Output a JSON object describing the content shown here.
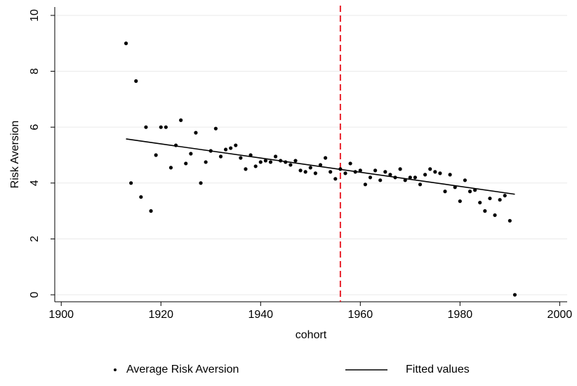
{
  "chart_data": {
    "type": "scatter",
    "xlabel": "cohort",
    "ylabel": "Risk Aversion",
    "x": [
      1913,
      1914,
      1915,
      1916,
      1917,
      1918,
      1919,
      1920,
      1921,
      1922,
      1923,
      1924,
      1925,
      1926,
      1927,
      1928,
      1929,
      1930,
      1931,
      1932,
      1933,
      1934,
      1935,
      1936,
      1937,
      1938,
      1939,
      1940,
      1941,
      1942,
      1943,
      1944,
      1945,
      1946,
      1947,
      1948,
      1949,
      1950,
      1951,
      1952,
      1953,
      1954,
      1955,
      1956,
      1957,
      1958,
      1959,
      1960,
      1961,
      1962,
      1963,
      1964,
      1965,
      1966,
      1967,
      1968,
      1969,
      1970,
      1971,
      1972,
      1973,
      1974,
      1975,
      1976,
      1977,
      1978,
      1979,
      1980,
      1981,
      1982,
      1983,
      1984,
      1985,
      1986,
      1987,
      1988,
      1989,
      1990,
      1991
    ],
    "series": [
      {
        "name": "Average Risk Aversion",
        "color": "#000000",
        "style": "markers",
        "values": [
          9,
          4,
          7.65,
          3.5,
          6,
          3,
          5,
          6,
          6,
          4.55,
          5.35,
          6.25,
          4.7,
          5.05,
          5.8,
          4,
          4.75,
          5.15,
          5.95,
          4.95,
          5.2,
          5.25,
          5.35,
          4.9,
          4.5,
          5,
          4.6,
          4.75,
          4.8,
          4.75,
          4.95,
          4.8,
          4.75,
          4.65,
          4.8,
          4.45,
          4.4,
          4.55,
          4.35,
          4.65,
          4.9,
          4.4,
          4.15,
          4.5,
          4.35,
          4.7,
          4.4,
          4.45,
          3.95,
          4.2,
          4.45,
          4.1,
          4.4,
          4.3,
          4.2,
          4.5,
          4.1,
          4.2,
          4.2,
          3.95,
          4.3,
          4.5,
          4.4,
          4.35,
          3.7,
          4.3,
          3.85,
          3.35,
          4.1,
          3.7,
          3.75,
          3.3,
          3,
          3.45,
          2.85,
          3.4,
          3.55,
          2.65,
          0
        ]
      },
      {
        "name": "Fitted values",
        "color": "#000000",
        "style": "line",
        "x": [
          1913,
          1991
        ],
        "values": [
          5.58,
          3.6
        ]
      }
    ],
    "vline": {
      "value": 1956,
      "color": "#e8212b"
    },
    "xlim": [
      1898.7,
      2001.5
    ],
    "xticks": [
      1900,
      1920,
      1940,
      1960,
      1980,
      2000
    ],
    "ylim": [
      -0.25,
      10.3
    ],
    "yticks": [
      0,
      2,
      4,
      6,
      8,
      10
    ],
    "grid": true,
    "legend": "bottom"
  }
}
